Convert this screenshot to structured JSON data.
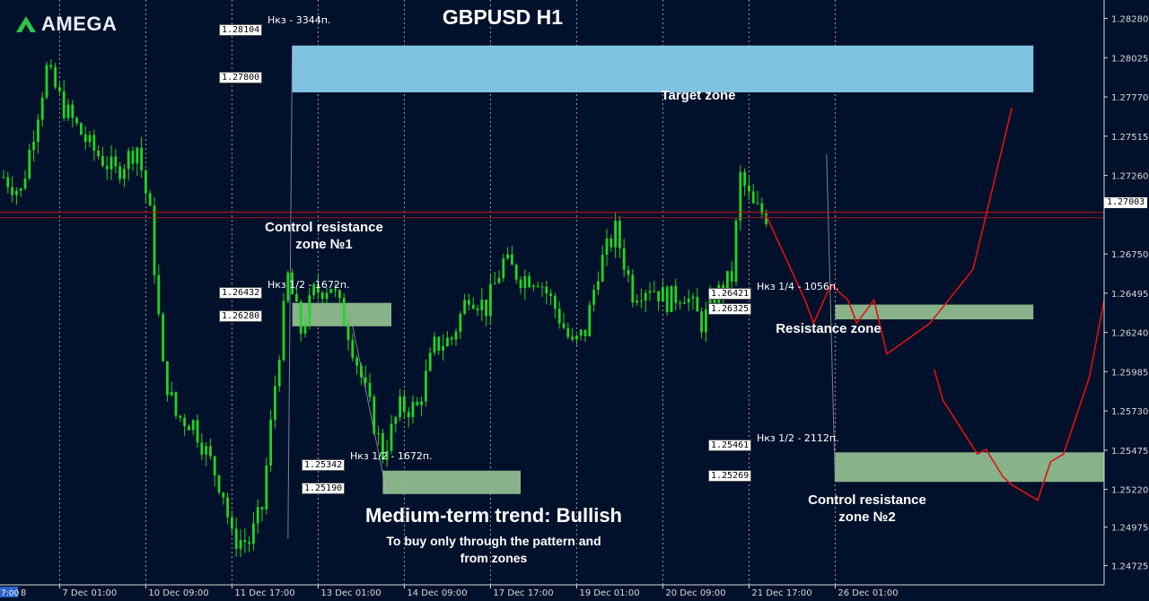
{
  "brand": {
    "logo_text": "AMEGA"
  },
  "chart_title": "GBPUSD H1",
  "labels": {
    "target_zone": "Target zone",
    "control_resistance_1_line1": "Control resistance",
    "control_resistance_1_line2": "zone №1",
    "resistance_zone": "Resistance zone",
    "control_resistance_2_line1": "Control resistance",
    "control_resistance_2_line2": "zone №2",
    "trend": "Medium-term trend: Bullish",
    "advice_line1": "To buy only through the pattern  and",
    "advice_line2": "from zones"
  },
  "zone_notes": {
    "target": "Нкз - 3344п.",
    "control_1": "Нкз 1/2 - 1672п.",
    "lower": "Нкз 1/2 - 1672п.",
    "resistance": "Нкз 1/4 - 1056п.",
    "control_2": "Нкз 1/2 - 2112п."
  },
  "price_boxes": {
    "target_top": "1.28104",
    "target_bottom": "1.27800",
    "control1_top": "1.26432",
    "control1_bottom": "1.26280",
    "lower_top": "1.25342",
    "lower_bottom": "1.25190",
    "resistance_top": "1.26421",
    "resistance_bottom": "1.26325",
    "control2_top": "1.25461",
    "control2_bottom": "1.25269"
  },
  "current_price": "1.27003",
  "axis_left_fragment": "7:00",
  "axis_left_digit": "8",
  "colors": {
    "background": "#02112b",
    "grid": "#c8c8c8",
    "candle": "#22d422",
    "forecast": "#e01010",
    "target_zone": "#87ceeb",
    "support_zone": "#8fbc8f",
    "price_line": "#d01010"
  },
  "chart_data": {
    "type": "candlestick",
    "symbol": "GBPUSD",
    "timeframe": "H1",
    "ylim": [
      1.246,
      1.284
    ],
    "y_ticks": [
      "1.28280",
      "1.28025",
      "1.27770",
      "1.27515",
      "1.27260",
      "1.27003",
      "1.26750",
      "1.26495",
      "1.26240",
      "1.25985",
      "1.25730",
      "1.25475",
      "1.25220",
      "1.24975",
      "1.24725"
    ],
    "x_ticks": [
      "7 Dec 01:00",
      "10 Dec 09:00",
      "11 Dec 17:00",
      "13 Dec 01:00",
      "14 Dec 09:00",
      "17 Dec 17:00",
      "19 Dec 01:00",
      "20 Dec 09:00",
      "21 Dec 17:00",
      "26 Dec 01:00"
    ],
    "x_tick_index": [
      13,
      33,
      53,
      73,
      93,
      113,
      133,
      153,
      173,
      193
    ],
    "bars": 178,
    "price_path": [
      [
        0,
        1.2725
      ],
      [
        4,
        1.2715
      ],
      [
        10,
        1.2795
      ],
      [
        14,
        1.277
      ],
      [
        20,
        1.2745
      ],
      [
        26,
        1.2728
      ],
      [
        31,
        1.2745
      ],
      [
        34,
        1.27
      ],
      [
        37,
        1.26
      ],
      [
        40,
        1.257
      ],
      [
        44,
        1.2565
      ],
      [
        48,
        1.254
      ],
      [
        51,
        1.252
      ],
      [
        53,
        1.249
      ],
      [
        57,
        1.2488
      ],
      [
        60,
        1.251
      ],
      [
        63,
        1.259
      ],
      [
        66,
        1.266
      ],
      [
        69,
        1.2625
      ],
      [
        72,
        1.265
      ],
      [
        76,
        1.2655
      ],
      [
        80,
        1.2625
      ],
      [
        84,
        1.2585
      ],
      [
        88,
        1.2545
      ],
      [
        92,
        1.2575
      ],
      [
        96,
        1.2575
      ],
      [
        100,
        1.2615
      ],
      [
        104,
        1.262
      ],
      [
        108,
        1.265
      ],
      [
        112,
        1.264
      ],
      [
        116,
        1.267
      ],
      [
        120,
        1.266
      ],
      [
        124,
        1.266
      ],
      [
        128,
        1.264
      ],
      [
        132,
        1.2615
      ],
      [
        135,
        1.2625
      ],
      [
        138,
        1.2665
      ],
      [
        142,
        1.269
      ],
      [
        146,
        1.265
      ],
      [
        150,
        1.2655
      ],
      [
        154,
        1.2645
      ],
      [
        158,
        1.265
      ],
      [
        162,
        1.263
      ],
      [
        166,
        1.265
      ],
      [
        169,
        1.266
      ],
      [
        171,
        1.2725
      ],
      [
        174,
        1.2705
      ],
      [
        177,
        1.27
      ]
    ],
    "zones": [
      {
        "name": "target",
        "top": 1.28104,
        "bottom": 1.278,
        "x_start": 67,
        "x_end": 239,
        "color": "#87ceeb"
      },
      {
        "name": "control_resistance_1",
        "top": 1.26432,
        "bottom": 1.2628,
        "x_start": 67,
        "x_end": 90,
        "color": "#8fbc8f"
      },
      {
        "name": "lower",
        "top": 1.25342,
        "bottom": 1.2519,
        "x_start": 88,
        "x_end": 120,
        "color": "#8fbc8f"
      },
      {
        "name": "resistance",
        "top": 1.26421,
        "bottom": 1.26325,
        "x_start": 193,
        "x_end": 239,
        "color": "#8fbc8f"
      },
      {
        "name": "control_resistance_2",
        "top": 1.25461,
        "bottom": 1.25269,
        "x_start": 193,
        "x_end": 269,
        "color": "#8fbc8f"
      }
    ],
    "forecast_paths": [
      [
        [
          177,
          1.27
        ],
        [
          186,
          1.2645
        ],
        [
          188,
          1.263
        ],
        [
          192,
          1.2655
        ],
        [
          196,
          1.2645
        ],
        [
          198,
          1.263
        ],
        [
          202,
          1.2645
        ],
        [
          205,
          1.261
        ],
        [
          215,
          1.263
        ],
        [
          225,
          1.2665
        ],
        [
          234,
          1.277
        ]
      ],
      [
        [
          216,
          1.26
        ],
        [
          218,
          1.258
        ],
        [
          226,
          1.2545
        ],
        [
          228,
          1.2548
        ],
        [
          232,
          1.253
        ],
        [
          234,
          1.2525
        ],
        [
          240,
          1.2515
        ],
        [
          243,
          1.254
        ],
        [
          246,
          1.2545
        ],
        [
          252,
          1.2595
        ],
        [
          264,
          1.277
        ]
      ]
    ],
    "current_price": 1.27003
  }
}
